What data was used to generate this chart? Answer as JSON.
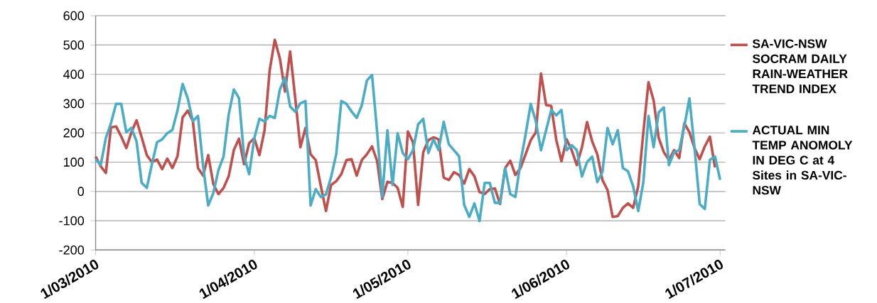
{
  "chart_data": {
    "type": "line",
    "x": [
      "2010-03-01",
      "2010-03-02",
      "2010-03-03",
      "2010-03-04",
      "2010-03-05",
      "2010-03-06",
      "2010-03-07",
      "2010-03-08",
      "2010-03-09",
      "2010-03-10",
      "2010-03-11",
      "2010-03-12",
      "2010-03-13",
      "2010-03-14",
      "2010-03-15",
      "2010-03-16",
      "2010-03-17",
      "2010-03-18",
      "2010-03-19",
      "2010-03-20",
      "2010-03-21",
      "2010-03-22",
      "2010-03-23",
      "2010-03-24",
      "2010-03-25",
      "2010-03-26",
      "2010-03-27",
      "2010-03-28",
      "2010-03-29",
      "2010-03-30",
      "2010-03-31",
      "2010-04-01",
      "2010-04-02",
      "2010-04-03",
      "2010-04-04",
      "2010-04-05",
      "2010-04-06",
      "2010-04-07",
      "2010-04-08",
      "2010-04-09",
      "2010-04-10",
      "2010-04-11",
      "2010-04-12",
      "2010-04-13",
      "2010-04-14",
      "2010-04-15",
      "2010-04-16",
      "2010-04-17",
      "2010-04-18",
      "2010-04-19",
      "2010-04-20",
      "2010-04-21",
      "2010-04-22",
      "2010-04-23",
      "2010-04-24",
      "2010-04-25",
      "2010-04-26",
      "2010-04-27",
      "2010-04-28",
      "2010-04-29",
      "2010-04-30",
      "2010-05-01",
      "2010-05-02",
      "2010-05-03",
      "2010-05-04",
      "2010-05-05",
      "2010-05-06",
      "2010-05-07",
      "2010-05-08",
      "2010-05-09",
      "2010-05-10",
      "2010-05-11",
      "2010-05-12",
      "2010-05-13",
      "2010-05-14",
      "2010-05-15",
      "2010-05-16",
      "2010-05-17",
      "2010-05-18",
      "2010-05-19",
      "2010-05-20",
      "2010-05-21",
      "2010-05-22",
      "2010-05-23",
      "2010-05-24",
      "2010-05-25",
      "2010-05-26",
      "2010-05-27",
      "2010-05-28",
      "2010-05-29",
      "2010-05-30",
      "2010-05-31",
      "2010-06-01",
      "2010-06-02",
      "2010-06-03",
      "2010-06-04",
      "2010-06-05",
      "2010-06-06",
      "2010-06-07",
      "2010-06-08",
      "2010-06-09",
      "2010-06-10",
      "2010-06-11",
      "2010-06-12",
      "2010-06-13",
      "2010-06-14",
      "2010-06-15",
      "2010-06-16",
      "2010-06-17",
      "2010-06-18",
      "2010-06-19",
      "2010-06-20",
      "2010-06-21",
      "2010-06-22",
      "2010-06-23",
      "2010-06-24",
      "2010-06-25",
      "2010-06-26",
      "2010-06-27",
      "2010-06-28",
      "2010-06-29",
      "2010-06-30",
      "2010-07-01"
    ],
    "series": [
      {
        "name": "SA-VIC-NSW SOCRAM DAILY RAIN-WEATHER TREND INDEX",
        "color": "#c0504d",
        "values": [
          119,
          86,
          63,
          219,
          222,
          188,
          148,
          202,
          243,
          185,
          124,
          100,
          109,
          76,
          112,
          80,
          120,
          253,
          276,
          240,
          80,
          54,
          124,
          25,
          -9,
          12,
          52,
          141,
          180,
          93,
          165,
          182,
          124,
          209,
          413,
          518,
          454,
          341,
          478,
          318,
          151,
          217,
          127,
          107,
          18,
          -67,
          22,
          35,
          59,
          107,
          110,
          54,
          107,
          127,
          154,
          103,
          -26,
          33,
          29,
          12,
          -53,
          205,
          168,
          -46,
          134,
          175,
          185,
          178,
          47,
          39,
          66,
          56,
          27,
          76,
          52,
          -2,
          -9,
          8,
          10,
          -43,
          80,
          105,
          56,
          80,
          127,
          175,
          202,
          403,
          295,
          292,
          175,
          103,
          178,
          141,
          90,
          151,
          237,
          171,
          127,
          39,
          5,
          -87,
          -84,
          -56,
          -41,
          -56,
          18,
          202,
          373,
          311,
          182,
          134,
          107,
          141,
          114,
          233,
          202,
          148,
          110,
          154,
          187,
          82,
          null
        ]
      },
      {
        "name": "ACTUAL MIN TEMP ANOMOLY IN DEG C at 4 Sites in SA-VIC-NSW",
        "color": "#4bacc6",
        "values": [
          110,
          90,
          182,
          233,
          299,
          299,
          202,
          217,
          171,
          29,
          12,
          93,
          168,
          178,
          199,
          210,
          277,
          367,
          318,
          240,
          258,
          86,
          -48,
          -5,
          73,
          120,
          263,
          348,
          319,
          120,
          59,
          182,
          248,
          239,
          258,
          251,
          348,
          389,
          290,
          272,
          301,
          309,
          -48,
          8,
          -19,
          -10,
          49,
          127,
          309,
          299,
          273,
          251,
          294,
          379,
          398,
          202,
          -19,
          209,
          22,
          199,
          131,
          110,
          141,
          229,
          248,
          131,
          178,
          141,
          238,
          161,
          141,
          120,
          -46,
          -87,
          -41,
          -101,
          29,
          29,
          -39,
          -39,
          80,
          -9,
          -19,
          100,
          195,
          299,
          239,
          141,
          209,
          278,
          260,
          278,
          141,
          158,
          141,
          51,
          100,
          119,
          32,
          66,
          217,
          161,
          209,
          80,
          69,
          18,
          -67,
          32,
          258,
          151,
          270,
          287,
          90,
          134,
          141,
          222,
          318,
          148,
          -43,
          -60,
          108,
          119,
          40
        ]
      }
    ],
    "xlim": [
      "2010-03-01",
      "2010-07-02"
    ],
    "xticks": [
      {
        "value": "2010-03-01",
        "label": "1/03/2010"
      },
      {
        "value": "2010-04-01",
        "label": "1/04/2010"
      },
      {
        "value": "2010-05-01",
        "label": "1/05/2010"
      },
      {
        "value": "2010-06-01",
        "label": "1/06/2010"
      },
      {
        "value": "2010-07-01",
        "label": "1/07/2010"
      }
    ],
    "ylim": [
      -200,
      600
    ],
    "yticks": [
      -200,
      -100,
      0,
      100,
      200,
      300,
      400,
      500,
      600
    ],
    "grid": "y",
    "legend": "right"
  }
}
